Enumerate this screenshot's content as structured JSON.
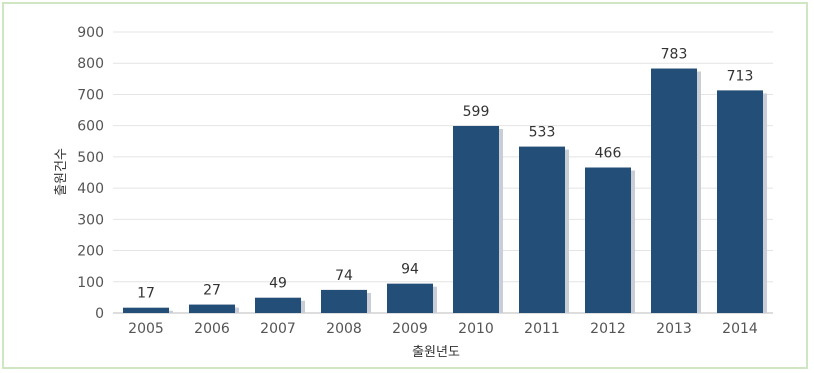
{
  "chart_data": {
    "type": "bar",
    "categories": [
      "2005",
      "2006",
      "2007",
      "2008",
      "2009",
      "2010",
      "2011",
      "2012",
      "2013",
      "2014"
    ],
    "values": [
      17,
      27,
      49,
      74,
      94,
      599,
      533,
      466,
      783,
      713
    ],
    "xlabel": "출원년도",
    "ylabel": "출원건수",
    "ylim": [
      0,
      900
    ],
    "yticks": [
      0,
      100,
      200,
      300,
      400,
      500,
      600,
      700,
      800,
      900
    ],
    "grid": true,
    "bar_color": "#234e77"
  }
}
